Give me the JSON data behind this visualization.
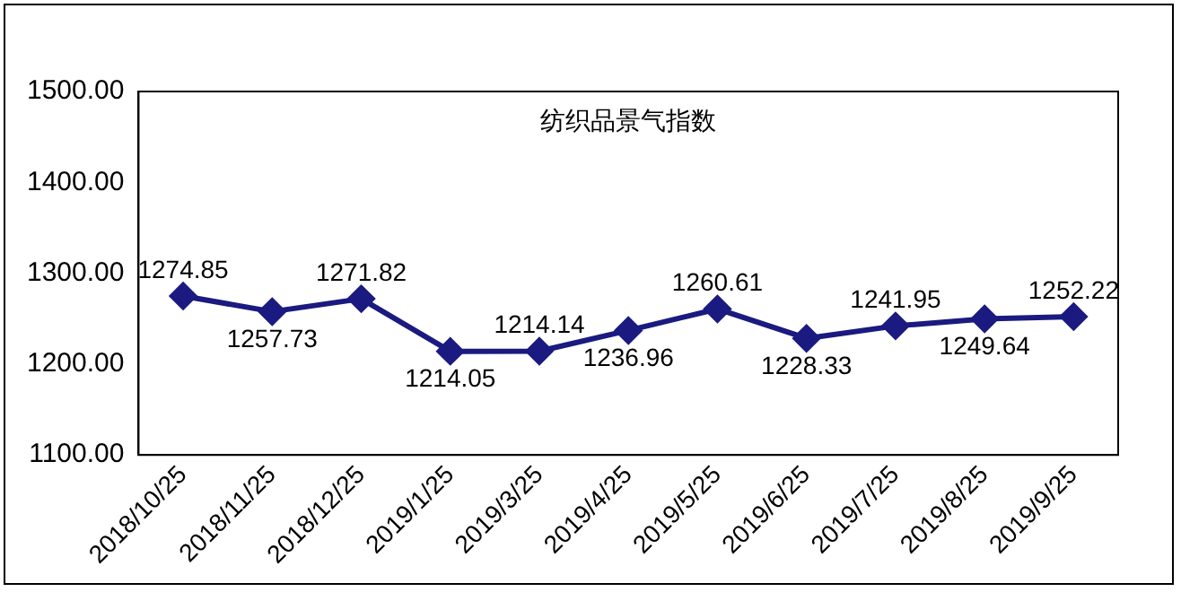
{
  "chart_data": {
    "type": "line",
    "title": "纺织品景气指数",
    "categories": [
      "2018/10/25",
      "2018/11/25",
      "2018/12/25",
      "2019/1/25",
      "2019/3/25",
      "2019/4/25",
      "2019/5/25",
      "2019/6/25",
      "2019/7/25",
      "2019/8/25",
      "2019/9/25"
    ],
    "series": [
      {
        "color": "#1a1a80",
        "values": [
          1274.85,
          1257.73,
          1271.82,
          1214.05,
          1214.14,
          1236.96,
          1260.61,
          1228.33,
          1241.95,
          1249.64,
          1252.22
        ]
      }
    ],
    "ylim": [
      1100,
      1500
    ],
    "yticks": [
      {
        "value": 1100,
        "label": "1100.00"
      },
      {
        "value": 1200,
        "label": "1200.00"
      },
      {
        "value": 1300,
        "label": "1300.00"
      },
      {
        "value": 1400,
        "label": "1400.00"
      },
      {
        "value": 1500,
        "label": "1500.00"
      }
    ],
    "grid": false,
    "legend": false,
    "marker": "diamond",
    "line_style": "solid",
    "data_labels": true
  }
}
